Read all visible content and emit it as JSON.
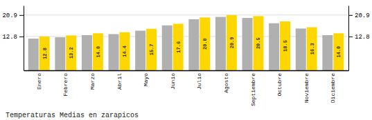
{
  "chart_data": {
    "type": "bar",
    "title": "Temperaturas Medias en zarapicos",
    "categories": [
      "Enero",
      "Febrero",
      "Marzo",
      "Abril",
      "Mayo",
      "Junio",
      "Julio",
      "Agosto",
      "Septiembre",
      "Octubre",
      "Noviembre",
      "Diciembre"
    ],
    "series": [
      {
        "color": "#B0B0B0",
        "values": [
          12.0,
          12.5,
          13.3,
          13.7,
          15.0,
          17.0,
          19.3,
          20.2,
          19.8,
          17.8,
          15.8,
          13.3
        ]
      },
      {
        "color": "#FFD700",
        "values": [
          12.8,
          13.2,
          14.0,
          14.4,
          15.7,
          17.6,
          20.0,
          20.9,
          20.5,
          18.5,
          16.3,
          14.0
        ],
        "value_labels": [
          "12.8",
          "13.2",
          "14.0",
          "14.4",
          "15.7",
          "17.6",
          "20.0",
          "20.9",
          "20.5",
          "18.5",
          "16.3",
          "14.0"
        ],
        "data_labels": true
      }
    ],
    "ylim": [
      0,
      24.5
    ],
    "yticks": [
      12.8,
      20.9
    ],
    "y2lim": [
      0,
      24.5
    ],
    "y2ticks": [
      12.8,
      20.9
    ],
    "grid": true
  }
}
